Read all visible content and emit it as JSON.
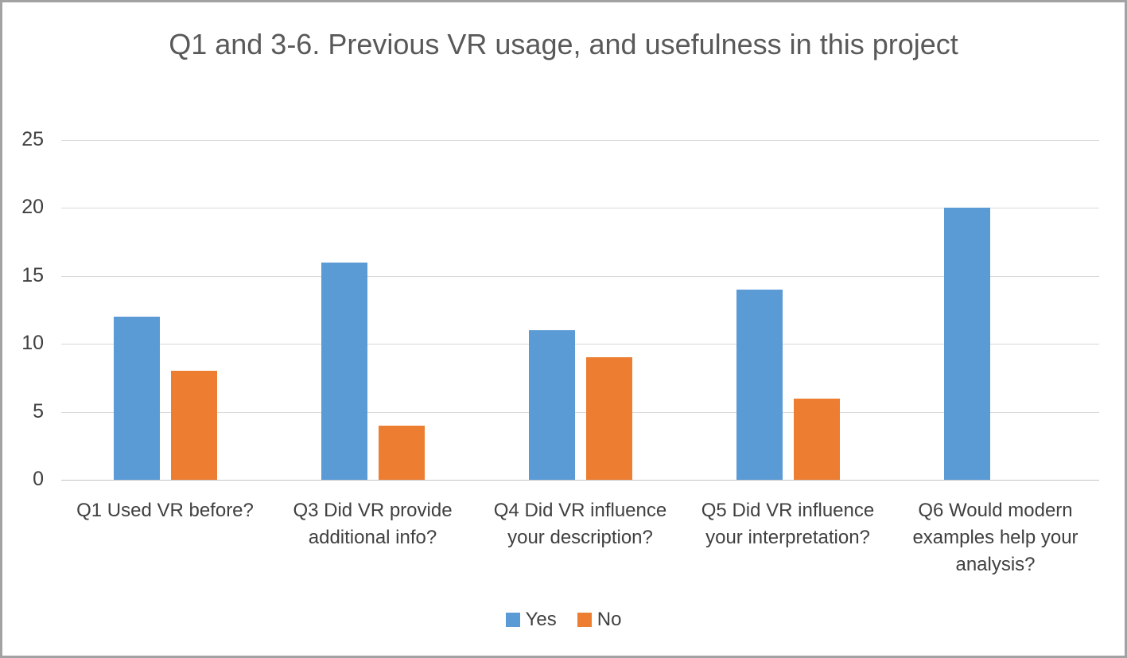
{
  "figure": {
    "background": "#ffffff",
    "border_color": "#a2a2a2"
  },
  "chart_data": {
    "type": "bar",
    "title": "Q1 and 3-6. Previous VR usage, and usefulness in this project",
    "categories": [
      "Q1 Used VR before?",
      "Q3 Did VR provide additional info?",
      "Q4 Did VR influence your description?",
      "Q5 Did VR influence your interpretation?",
      "Q6 Would modern examples help your analysis?"
    ],
    "series": [
      {
        "name": "Yes",
        "color": "#5B9BD5",
        "values": [
          12,
          16,
          11,
          14,
          20
        ]
      },
      {
        "name": "No",
        "color": "#ED7D31",
        "values": [
          8,
          4,
          9,
          6,
          0
        ]
      }
    ],
    "xlabel": "",
    "ylabel": "",
    "ylim": [
      0,
      25
    ],
    "yticks": [
      "25",
      "20",
      "15",
      "10",
      "5",
      "0"
    ],
    "grid": "horizontal",
    "gridline_color": "#d9d9d9",
    "legend_position": "bottom-center",
    "text_color": "#404040",
    "title_color": "#595959"
  },
  "legend": {
    "items": [
      {
        "label": "Yes"
      },
      {
        "label": "No"
      }
    ]
  }
}
